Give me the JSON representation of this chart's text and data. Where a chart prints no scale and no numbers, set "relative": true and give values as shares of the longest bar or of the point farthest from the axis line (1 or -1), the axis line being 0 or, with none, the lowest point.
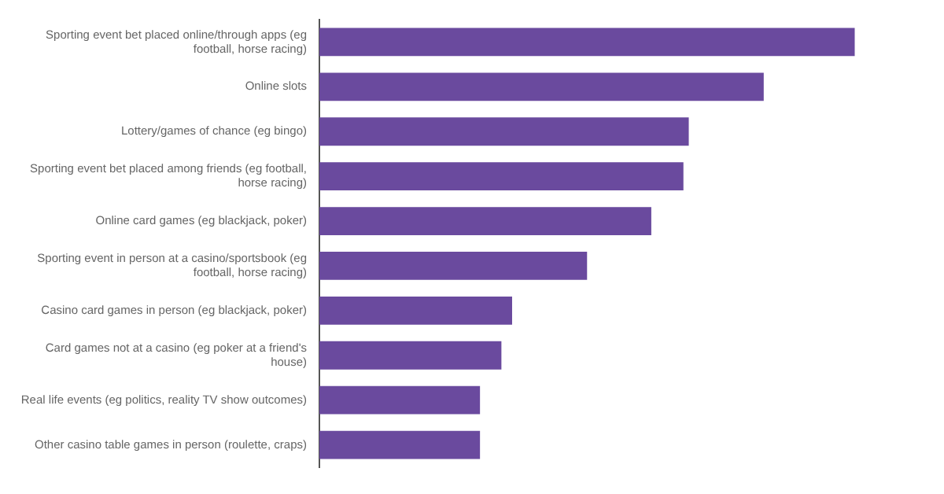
{
  "chart_data": {
    "type": "bar",
    "orientation": "horizontal",
    "relative": true,
    "legend": false,
    "categories": [
      "Sporting event bet placed online/through apps (eg football, horse racing)",
      "Online slots",
      "Lottery/games of chance (eg bingo)",
      "Sporting event bet placed among friends (eg football, horse racing)",
      "Online card games (eg blackjack, poker)",
      "Sporting event in person at a casino/sportsbook (eg football, horse racing)",
      "Casino card games in person (eg blackjack, poker)",
      "Card games not at a casino (eg poker at a friend's house)",
      "Real life events (eg politics, reality TV show outcomes)",
      "Other casino table games in person (roulette, craps)"
    ],
    "series": [
      {
        "color": "#6a4a9e",
        "values": [
          1,
          0.83,
          0.69,
          0.68,
          0.62,
          0.5,
          0.36,
          0.34,
          0.3,
          0.3
        ]
      }
    ]
  }
}
